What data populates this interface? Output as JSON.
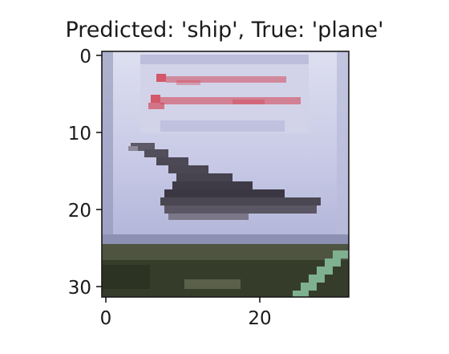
{
  "figure": {
    "title": "Predicted: 'ship', True: 'plane'"
  },
  "axes": {
    "y_ticks": [
      "0",
      "10",
      "20",
      "30"
    ],
    "x_ticks": [
      "0",
      "20"
    ]
  },
  "image": {
    "predicted_label": "ship",
    "true_label": "plane",
    "colors": {
      "sky_top": "#dcdcf0",
      "sky_mid": "#c6c8e6",
      "sky_bottom": "#a8acd2",
      "banner_text": "#d24a5c",
      "aircraft": "#4a4650",
      "ground_dark": "#303826",
      "ground_mid": "#4a5038",
      "runway_stripe": "#7fb090",
      "frame_edge": "#7a7880"
    }
  }
}
